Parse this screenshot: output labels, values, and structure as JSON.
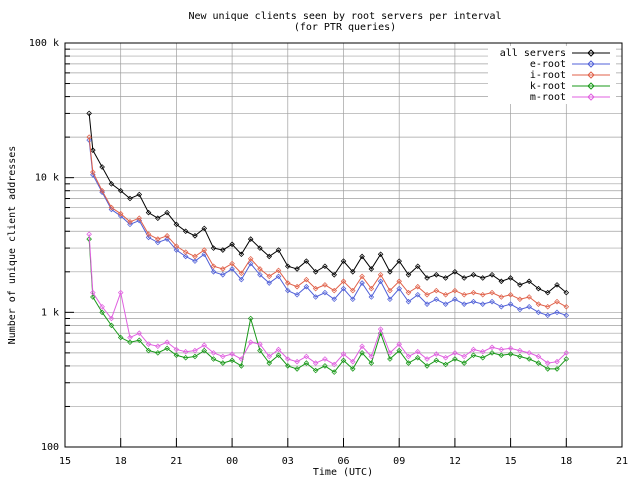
{
  "chart_data": {
    "type": "line",
    "title": "New unique clients seen by root servers per interval",
    "subtitle": "(for PTR queries)",
    "x_label": "Time (UTC)",
    "y_label": "Number of unique client addresses",
    "log_y": true,
    "grid": true,
    "legend_position": "top-right",
    "xlim": [
      15,
      45
    ],
    "xticks": [
      15,
      18,
      21,
      {
        "value": 24,
        "label": "00"
      },
      {
        "value": 27,
        "label": "03"
      },
      {
        "value": 30,
        "label": "06"
      },
      {
        "value": 33,
        "label": "09"
      },
      {
        "value": 36,
        "label": "12"
      },
      {
        "value": 39,
        "label": "15"
      },
      {
        "value": 42,
        "label": "18"
      },
      {
        "value": 45,
        "label": "21"
      }
    ],
    "ylim": [
      100,
      100000
    ],
    "yticks": [
      100,
      {
        "value": 1000,
        "label": "1 k"
      },
      {
        "value": 10000,
        "label": "10 k"
      },
      {
        "value": 100000,
        "label": "100 k"
      }
    ],
    "y_minor_ticks": [
      200,
      300,
      400,
      500,
      600,
      700,
      800,
      900,
      2000,
      3000,
      4000,
      5000,
      6000,
      7000,
      8000,
      9000,
      20000,
      30000,
      40000,
      50000,
      60000,
      70000,
      80000,
      90000
    ],
    "x": [
      16.3,
      16.5,
      17,
      17.5,
      18,
      18.5,
      19,
      19.5,
      20,
      20.5,
      21,
      21.5,
      22,
      22.5,
      23,
      23.5,
      24,
      24.5,
      25,
      25.5,
      26,
      26.5,
      27,
      27.5,
      28,
      28.5,
      29,
      29.5,
      30,
      30.5,
      31,
      31.5,
      32,
      32.5,
      33,
      33.5,
      34,
      34.5,
      35,
      35.5,
      36,
      36.5,
      37,
      37.5,
      38,
      38.5,
      39,
      39.5,
      40,
      40.5,
      41,
      41.5,
      42
    ],
    "series": [
      {
        "name": "all servers",
        "color": "#000000",
        "values": [
          30000,
          16000,
          12000,
          9000,
          8000,
          7000,
          7500,
          5500,
          5000,
          5500,
          4500,
          4000,
          3700,
          4200,
          3000,
          2900,
          3200,
          2700,
          3500,
          3000,
          2600,
          2900,
          2200,
          2100,
          2400,
          2000,
          2200,
          1900,
          2400,
          2000,
          2600,
          2100,
          2700,
          2000,
          2400,
          1900,
          2200,
          1800,
          1900,
          1800,
          2000,
          1800,
          1900,
          1800,
          1900,
          1700,
          1800,
          1600,
          1700,
          1500,
          1400,
          1600,
          1400
        ]
      },
      {
        "name": "e-root",
        "color": "#5060d8",
        "values": [
          19000,
          10500,
          7800,
          5800,
          5200,
          4500,
          4800,
          3600,
          3300,
          3500,
          2900,
          2600,
          2400,
          2700,
          2000,
          1900,
          2100,
          1750,
          2300,
          1900,
          1650,
          1850,
          1450,
          1350,
          1550,
          1300,
          1400,
          1250,
          1500,
          1250,
          1650,
          1300,
          1700,
          1250,
          1500,
          1200,
          1350,
          1150,
          1250,
          1150,
          1250,
          1150,
          1200,
          1150,
          1200,
          1100,
          1150,
          1050,
          1100,
          1000,
          950,
          1000,
          950
        ]
      },
      {
        "name": "i-root",
        "color": "#e06048",
        "values": [
          20000,
          11000,
          8000,
          6000,
          5400,
          4700,
          5000,
          3800,
          3500,
          3700,
          3100,
          2800,
          2600,
          2900,
          2200,
          2100,
          2300,
          1950,
          2500,
          2100,
          1850,
          2050,
          1650,
          1550,
          1750,
          1500,
          1600,
          1450,
          1700,
          1450,
          1850,
          1500,
          1900,
          1450,
          1700,
          1400,
          1550,
          1350,
          1450,
          1350,
          1450,
          1350,
          1400,
          1350,
          1400,
          1300,
          1350,
          1250,
          1300,
          1150,
          1100,
          1200,
          1100
        ]
      },
      {
        "name": "k-root",
        "color": "#189818",
        "values": [
          3500,
          1300,
          1000,
          800,
          650,
          600,
          620,
          520,
          500,
          540,
          480,
          460,
          470,
          520,
          450,
          420,
          440,
          400,
          900,
          520,
          420,
          480,
          400,
          380,
          420,
          370,
          400,
          360,
          440,
          380,
          500,
          420,
          700,
          450,
          520,
          420,
          460,
          400,
          440,
          410,
          450,
          420,
          480,
          460,
          500,
          480,
          490,
          470,
          450,
          420,
          380,
          380,
          450
        ]
      },
      {
        "name": "m-root",
        "color": "#e060e0",
        "values": [
          3800,
          1400,
          1100,
          900,
          1400,
          650,
          700,
          580,
          560,
          600,
          530,
          510,
          520,
          570,
          500,
          470,
          490,
          450,
          600,
          580,
          470,
          530,
          450,
          430,
          470,
          420,
          450,
          410,
          490,
          430,
          560,
          470,
          750,
          500,
          580,
          470,
          510,
          450,
          490,
          460,
          500,
          470,
          530,
          510,
          550,
          530,
          540,
          520,
          500,
          470,
          420,
          430,
          500
        ]
      }
    ]
  }
}
